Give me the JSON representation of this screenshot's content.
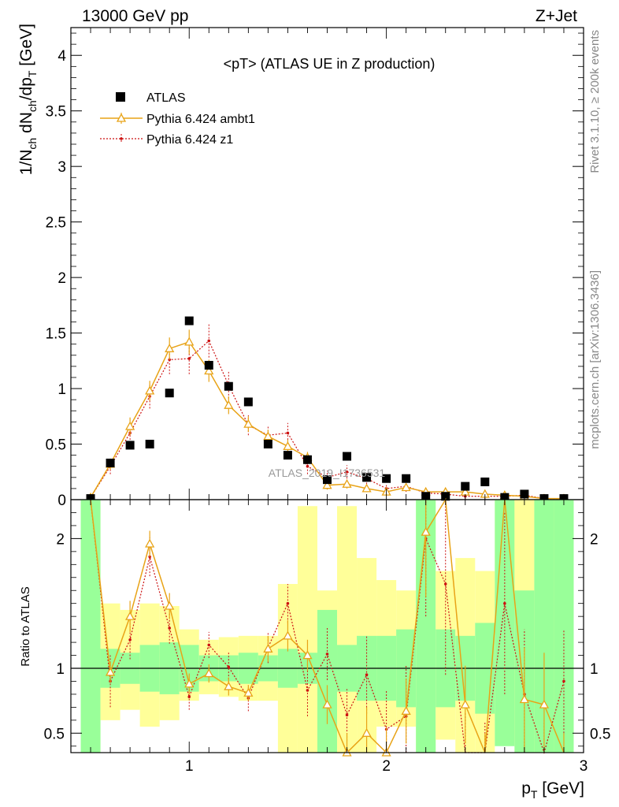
{
  "header": {
    "left_label": "13000 GeV pp",
    "right_label": "Z+Jet"
  },
  "side_text": {
    "rivet": "Rivet 3.1.10, ≥ 200k events",
    "mcplots": "mcplots.cern.ch [arXiv:1306.3436]"
  },
  "chart_data": [
    {
      "type": "scatter",
      "panel": "main",
      "title": "<pT> (ATLAS UE in Z production)",
      "watermark": "ATLAS_2019_I1736531",
      "ylabel_main": "1/N",
      "ylabel_sub1": "ch",
      "ylabel_mid": " dN",
      "ylabel_sub2": "ch",
      "ylabel_mid2": "/dp",
      "ylabel_sub3": "T",
      "ylabel_end": " [GeV]",
      "xlim": [
        0.4,
        3.0
      ],
      "ylim": [
        0,
        4.25
      ],
      "y_ticks": [
        0,
        0.5,
        1,
        1.5,
        2,
        2.5,
        3,
        3.5,
        4
      ],
      "y_tick_labels": [
        "0",
        "0.5",
        "1",
        "1.5",
        "2",
        "2.5",
        "3",
        "3.5",
        "4"
      ],
      "legend_position": "top-left",
      "series": [
        {
          "name": "ATLAS",
          "style": "square-marker",
          "color": "#000000",
          "x": [
            0.5,
            0.6,
            0.7,
            0.8,
            0.9,
            1.0,
            1.1,
            1.2,
            1.3,
            1.4,
            1.5,
            1.6,
            1.7,
            1.8,
            1.9,
            2.0,
            2.1,
            2.2,
            2.3,
            2.4,
            2.5,
            2.6,
            2.7,
            2.8,
            2.9
          ],
          "y": [
            0.01,
            0.33,
            0.49,
            0.5,
            0.96,
            1.61,
            1.21,
            1.02,
            0.88,
            0.5,
            0.4,
            0.36,
            0.18,
            0.39,
            0.2,
            0.19,
            0.19,
            0.03,
            0.03,
            0.12,
            0.16,
            0.02,
            0.05,
            0.01,
            0.01
          ]
        },
        {
          "name": "Pythia 6.424 ambt1",
          "style": "solid-triangle",
          "color": "#e8a317",
          "x": [
            0.5,
            0.6,
            0.7,
            0.8,
            0.9,
            1.0,
            1.1,
            1.2,
            1.3,
            1.4,
            1.5,
            1.6,
            1.7,
            1.8,
            1.9,
            2.0,
            2.1,
            2.2,
            2.3,
            2.4,
            2.5,
            2.6,
            2.7,
            2.8,
            2.9
          ],
          "y": [
            0.02,
            0.32,
            0.66,
            0.98,
            1.36,
            1.42,
            1.16,
            0.85,
            0.68,
            0.57,
            0.48,
            0.38,
            0.13,
            0.14,
            0.1,
            0.07,
            0.11,
            0.07,
            0.07,
            0.07,
            0.05,
            0.04,
            0.03,
            0.01,
            0.01
          ],
          "err": [
            0.02,
            0.05,
            0.08,
            0.09,
            0.1,
            0.11,
            0.1,
            0.08,
            0.07,
            0.06,
            0.06,
            0.05,
            0.04,
            0.04,
            0.03,
            0.03,
            0.03,
            0.03,
            0.03,
            0.02,
            0.02,
            0.02,
            0.02,
            0.01,
            0.01
          ]
        },
        {
          "name": "Pythia 6.424 z1",
          "style": "dotted-dot",
          "color": "#cc1111",
          "x": [
            0.5,
            0.6,
            0.7,
            0.8,
            0.9,
            1.0,
            1.1,
            1.2,
            1.3,
            1.4,
            1.5,
            1.6,
            1.7,
            1.8,
            1.9,
            2.0,
            2.1,
            2.2,
            2.3,
            2.4,
            2.5,
            2.6,
            2.7,
            2.8,
            2.9
          ],
          "y": [
            0.02,
            0.3,
            0.6,
            0.93,
            1.26,
            1.27,
            1.43,
            1.03,
            0.67,
            0.58,
            0.6,
            0.3,
            0.2,
            0.25,
            0.19,
            0.1,
            0.12,
            0.06,
            0.05,
            0.03,
            0.03,
            0.03,
            0.04,
            0.01,
            0.01
          ],
          "err": [
            0.02,
            0.07,
            0.09,
            0.11,
            0.13,
            0.14,
            0.15,
            0.12,
            0.09,
            0.08,
            0.09,
            0.07,
            0.06,
            0.06,
            0.05,
            0.04,
            0.05,
            0.04,
            0.04,
            0.03,
            0.03,
            0.03,
            0.03,
            0.01,
            0.01
          ]
        }
      ]
    },
    {
      "type": "line",
      "panel": "ratio",
      "ylabel": "Ratio to ATLAS",
      "xlabel_main": "p",
      "xlabel_sub": "T",
      "xlabel_end": " [GeV]",
      "xlim": [
        0.4,
        3.0
      ],
      "ylim": [
        0.35,
        2.3
      ],
      "y_ticks": [
        0.5,
        1,
        2
      ],
      "y_tick_labels": [
        "0.5",
        "1",
        "2"
      ],
      "x_ticks": [
        1,
        2,
        3
      ],
      "x_tick_labels": [
        "1",
        "2",
        "3"
      ],
      "band_bins": [
        0.45,
        0.55,
        0.65,
        0.75,
        0.85,
        0.95,
        1.05,
        1.15,
        1.25,
        1.35,
        1.45,
        1.55,
        1.65,
        1.75,
        1.85,
        1.95,
        2.05,
        2.15,
        2.25,
        2.35,
        2.45,
        2.55,
        2.65,
        2.75,
        2.85,
        2.95
      ],
      "band_stat": [
        [
          0.35,
          2.3
        ],
        [
          0.85,
          1.15
        ],
        [
          0.88,
          1.12
        ],
        [
          0.82,
          1.18
        ],
        [
          0.8,
          1.2
        ],
        [
          0.82,
          1.18
        ],
        [
          0.9,
          1.1
        ],
        [
          0.9,
          1.1
        ],
        [
          0.88,
          1.12
        ],
        [
          0.9,
          1.1
        ],
        [
          0.85,
          1.15
        ],
        [
          0.88,
          1.12
        ],
        [
          0.35,
          1.45
        ],
        [
          0.82,
          1.18
        ],
        [
          0.75,
          1.25
        ],
        [
          0.75,
          1.25
        ],
        [
          0.7,
          1.3
        ],
        [
          0.35,
          2.3
        ],
        [
          0.7,
          1.3
        ],
        [
          0.75,
          1.25
        ],
        [
          0.65,
          1.35
        ],
        [
          0.4,
          2.3
        ],
        [
          0.35,
          1.6
        ],
        [
          0.35,
          2.3
        ],
        [
          0.35,
          2.3
        ]
      ],
      "band_total": [
        [
          0.35,
          2.3
        ],
        [
          0.6,
          1.5
        ],
        [
          0.68,
          1.45
        ],
        [
          0.55,
          1.5
        ],
        [
          0.6,
          1.48
        ],
        [
          0.75,
          1.3
        ],
        [
          0.8,
          1.22
        ],
        [
          0.78,
          1.24
        ],
        [
          0.75,
          1.25
        ],
        [
          0.75,
          1.25
        ],
        [
          0.35,
          1.65
        ],
        [
          0.35,
          2.25
        ],
        [
          0.35,
          1.6
        ],
        [
          0.35,
          2.25
        ],
        [
          0.35,
          1.85
        ],
        [
          0.55,
          1.68
        ],
        [
          0.55,
          1.6
        ],
        [
          0.35,
          2.3
        ],
        [
          0.45,
          1.75
        ],
        [
          0.35,
          1.85
        ],
        [
          0.35,
          1.75
        ],
        [
          0.45,
          2.3
        ],
        [
          0.35,
          2.3
        ],
        [
          0.35,
          2.3
        ],
        [
          0.35,
          2.3
        ]
      ],
      "reference_line": 1,
      "series": [
        {
          "name": "Pythia 6.424 ambt1",
          "color": "#e8a317",
          "x": [
            0.5,
            0.6,
            0.7,
            0.8,
            0.9,
            1.0,
            1.1,
            1.2,
            1.3,
            1.4,
            1.5,
            1.6,
            1.7,
            1.8,
            1.9,
            2.0,
            2.1,
            2.2,
            2.3,
            2.4,
            2.5,
            2.6,
            2.7,
            2.8,
            2.9
          ],
          "y": [
            3.0,
            0.97,
            1.4,
            1.96,
            1.48,
            0.88,
            0.96,
            0.86,
            0.81,
            1.15,
            1.25,
            1.1,
            0.72,
            0.35,
            0.5,
            0.35,
            0.67,
            2.05,
            3.0,
            0.72,
            0.2,
            3.0,
            0.76,
            0.72,
            0.2
          ],
          "err": [
            0.5,
            0.08,
            0.12,
            0.1,
            0.1,
            0.08,
            0.07,
            0.07,
            0.06,
            0.1,
            0.12,
            0.12,
            0.15,
            0.15,
            0.2,
            0.2,
            0.25,
            0.5,
            0.6,
            0.3,
            0.3,
            0.6,
            0.4,
            0.4,
            0.3
          ]
        },
        {
          "name": "Pythia 6.424 z1",
          "color": "#cc1111",
          "x": [
            0.5,
            0.6,
            0.7,
            0.8,
            0.9,
            1.0,
            1.1,
            1.2,
            1.3,
            1.4,
            1.5,
            1.6,
            1.7,
            1.8,
            1.9,
            2.0,
            2.1,
            2.2,
            2.3,
            2.4,
            2.5,
            2.6,
            2.7,
            2.8,
            2.9
          ],
          "y": [
            3.0,
            0.9,
            1.22,
            1.86,
            1.31,
            0.78,
            1.18,
            1.01,
            0.77,
            1.16,
            1.5,
            0.83,
            1.11,
            0.64,
            0.95,
            0.53,
            0.63,
            2.0,
            1.65,
            0.26,
            0.19,
            1.5,
            0.8,
            0.2,
            0.9
          ],
          "err": [
            0.6,
            0.2,
            0.15,
            0.15,
            0.12,
            0.1,
            0.1,
            0.12,
            0.1,
            0.12,
            0.15,
            0.2,
            0.2,
            0.2,
            0.3,
            0.3,
            0.4,
            0.6,
            0.7,
            0.4,
            0.4,
            0.7,
            0.5,
            0.4,
            0.4
          ]
        }
      ]
    }
  ]
}
